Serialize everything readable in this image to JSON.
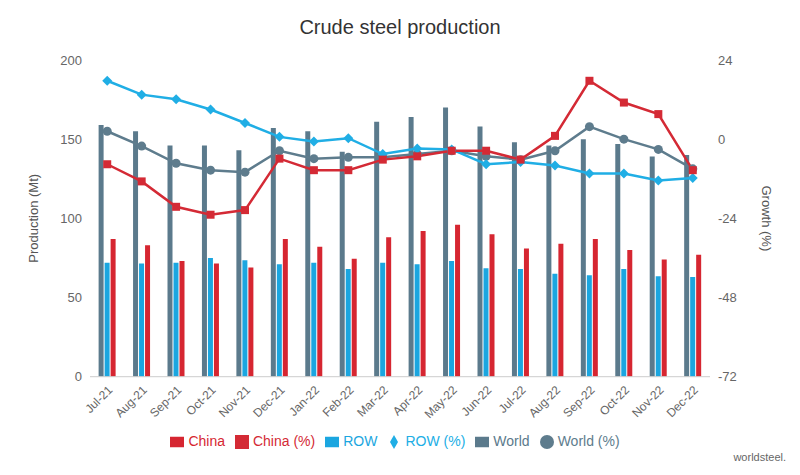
{
  "chart_data": {
    "type": "bar",
    "title": "Crude steel production",
    "ylabel": "Production (Mt)",
    "y2label": "Growth (%)",
    "source": "worldsteel.",
    "categories": [
      "Jul-21",
      "Aug-21",
      "Sep-21",
      "Oct-21",
      "Nov-21",
      "Dec-21",
      "Jan-22",
      "Feb-22",
      "Mar-22",
      "Apr-22",
      "May-22",
      "Jun-22",
      "Jul-22",
      "Aug-22",
      "Sep-22",
      "Oct-22",
      "Nov-22",
      "Dec-22"
    ],
    "ylim": [
      0,
      200
    ],
    "yticks": [
      0,
      50,
      100,
      150,
      200
    ],
    "y2lim": [
      -72,
      24
    ],
    "y2ticks": [
      -72,
      -48,
      -24,
      0,
      24
    ],
    "grid": false,
    "legend": "bottom",
    "series": [
      {
        "name": "World",
        "type": "bar",
        "color": "#5b7a8c",
        "values": [
          159,
          155,
          146,
          146,
          143,
          157,
          155,
          142,
          161,
          164,
          170,
          158,
          148,
          146,
          150,
          147,
          139,
          140
        ]
      },
      {
        "name": "ROW",
        "type": "bar",
        "color": "#1ba6e0",
        "values": [
          72,
          71.5,
          72,
          75,
          73.5,
          71,
          72,
          68,
          72,
          71,
          73,
          68.5,
          68,
          65,
          64,
          68,
          63.5,
          63
        ]
      },
      {
        "name": "China",
        "type": "bar",
        "color": "#d62631",
        "values": [
          87,
          83,
          73,
          71.5,
          69,
          87,
          82,
          74.5,
          88,
          92,
          96,
          90,
          81,
          84,
          87,
          80,
          74,
          77
        ]
      },
      {
        "name": "World (%)",
        "type": "line",
        "axis": "y2",
        "marker": "circle",
        "color": "#5e7c8d",
        "values": [
          2.4,
          -2.1,
          -7.3,
          -9.4,
          -10.0,
          -3.5,
          -5.9,
          -5.5,
          -5.5,
          -4.5,
          -3.5,
          -5.2,
          -6.2,
          -3.5,
          3.8,
          0,
          -3.1,
          -9.0
        ]
      },
      {
        "name": "ROW (%)",
        "type": "line",
        "axis": "y2",
        "marker": "diamond",
        "color": "#20aee5",
        "values": [
          17.7,
          13.5,
          12.1,
          9.0,
          4.9,
          0.7,
          -0.7,
          0.3,
          -4.5,
          -2.8,
          -3.1,
          -7.6,
          -6.9,
          -8.0,
          -10.4,
          -10.4,
          -12.5,
          -11.8
        ]
      },
      {
        "name": "China (%)",
        "type": "line",
        "axis": "y2",
        "marker": "square",
        "color": "#d42a35",
        "values": [
          -7.6,
          -12.8,
          -20.5,
          -22.9,
          -21.5,
          -5.9,
          -9.4,
          -9.4,
          -6.2,
          -5.2,
          -3.5,
          -3.5,
          -6.2,
          1.0,
          17.7,
          11.1,
          7.6,
          -9.4
        ]
      }
    ]
  }
}
